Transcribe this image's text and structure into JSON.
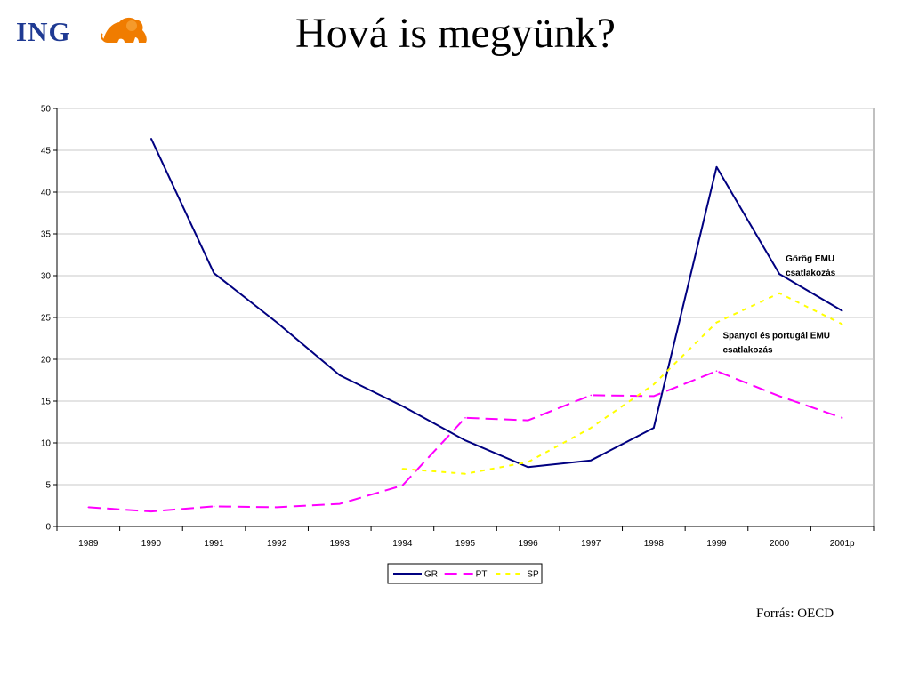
{
  "header": {
    "logo_text": "ING",
    "logo_icon": "lion-icon",
    "title": "Hová is megyünk?"
  },
  "source_note": "Forrás: OECD",
  "colors": {
    "GR": "#000080",
    "PT": "#ff00ff",
    "SP": "#ffff00",
    "grid": "#c8c8c8"
  },
  "chart_data": {
    "type": "line",
    "title": "",
    "xlabel": "",
    "ylabel": "",
    "ylim": [
      0,
      50
    ],
    "yticks": [
      0,
      5,
      10,
      15,
      20,
      25,
      30,
      35,
      40,
      45,
      50
    ],
    "grid": true,
    "legend": "bottom-center",
    "categories": [
      "1989",
      "1990",
      "1991",
      "1992",
      "1993",
      "1994",
      "1995",
      "1996",
      "1997",
      "1998",
      "1999",
      "2000",
      "2001p"
    ],
    "series": [
      {
        "name": "GR",
        "style": "solid",
        "values": [
          null,
          46.4,
          30.3,
          24.4,
          18.1,
          14.4,
          10.3,
          7.1,
          7.9,
          11.8,
          43.0,
          30.2,
          25.8
        ]
      },
      {
        "name": "PT",
        "style": "dashed",
        "values": [
          2.3,
          1.8,
          2.4,
          2.3,
          2.7,
          4.9,
          13.0,
          12.7,
          15.7,
          15.6,
          18.6,
          15.6,
          13.0
        ]
      },
      {
        "name": "SP",
        "style": "dotted",
        "values": [
          null,
          null,
          null,
          null,
          null,
          6.9,
          6.3,
          7.7,
          11.8,
          17.0,
          24.4,
          27.9,
          24.2
        ]
      }
    ],
    "annotations": [
      {
        "lines": [
          "Görög EMU",
          "csatlakozás"
        ],
        "x": "2000",
        "y": 31.7
      },
      {
        "lines": [
          "Spanyol és portugál EMU",
          "csatlakozás"
        ],
        "x": "1999",
        "y": 22.5
      }
    ]
  }
}
